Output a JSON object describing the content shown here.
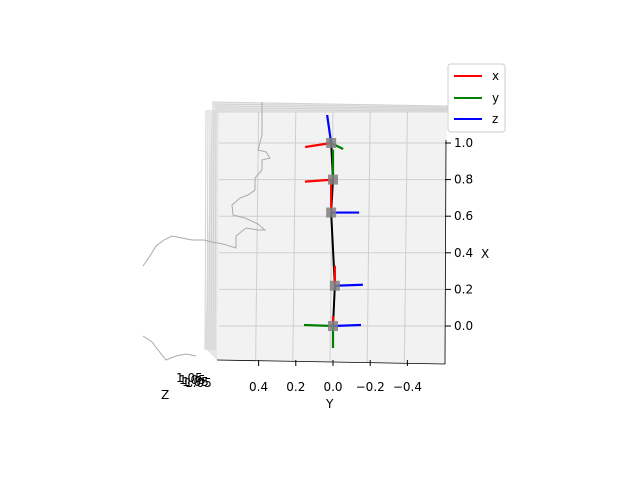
{
  "chart_data": {
    "type": "3d-line",
    "view": "top-down, X vertical, Y horizontal (inverted), Z into page",
    "xlabel": "X",
    "ylabel": "Y",
    "zlabel": "Z",
    "x_ticks": [
      "0.0",
      "0.2",
      "0.4",
      "0.6",
      "0.8",
      "1.0"
    ],
    "y_ticks": [
      "0.4",
      "0.2",
      "0.0",
      "−0.2",
      "−0.4"
    ],
    "z_tick_text": "1.05",
    "xlim": [
      -0.1,
      1.1
    ],
    "ylim": [
      0.6,
      -0.6
    ],
    "grid": true,
    "legend_placement": "upper right",
    "legend": [
      {
        "label": "x",
        "color": "#ff0000"
      },
      {
        "label": "y",
        "color": "#008000"
      },
      {
        "label": "z",
        "color": "#0000ff"
      }
    ],
    "joints": [
      {
        "x": 0.0,
        "y": 0.0
      },
      {
        "x": 0.22,
        "y": -0.01
      },
      {
        "x": 0.62,
        "y": 0.01
      },
      {
        "x": 0.8,
        "y": 0.0
      },
      {
        "x": 1.0,
        "y": 0.01
      }
    ],
    "links_color": "#000000",
    "joint_color": "#808080",
    "background_outline_color": "#aaaaaa"
  }
}
